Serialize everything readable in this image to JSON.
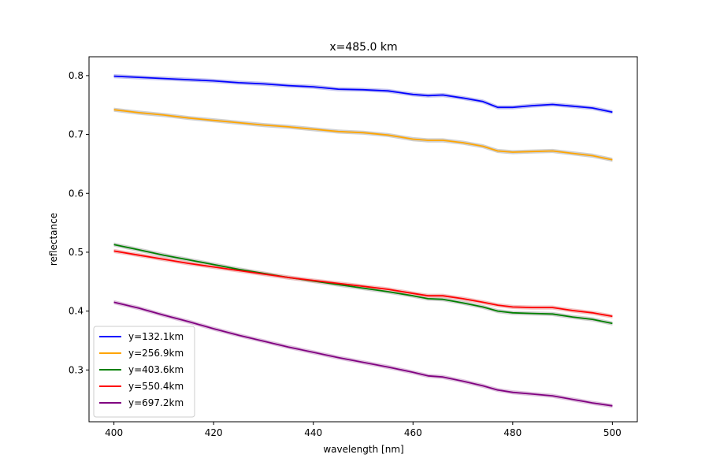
{
  "chart_data": {
    "type": "line",
    "title": "x=485.0 km",
    "xlabel": "wavelength [nm]",
    "ylabel": "reflectance",
    "xlim": [
      395,
      505
    ],
    "ylim": [
      0.212,
      0.832
    ],
    "xticks": [
      400,
      420,
      440,
      460,
      480,
      500
    ],
    "xtick_labels": [
      "400",
      "420",
      "440",
      "460",
      "480",
      "500"
    ],
    "yticks": [
      0.3,
      0.4,
      0.5,
      0.6,
      0.7,
      0.8
    ],
    "ytick_labels": [
      "0.3",
      "0.4",
      "0.5",
      "0.6",
      "0.7",
      "0.8"
    ],
    "grid": false,
    "legend": "lower-left",
    "x": [
      400,
      405,
      410,
      415,
      420,
      425,
      430,
      435,
      440,
      445,
      450,
      455,
      460,
      463,
      466,
      470,
      474,
      477,
      480,
      484,
      488,
      492,
      496,
      500
    ],
    "series": [
      {
        "name": "y=132.1km",
        "color": "#0000ff",
        "band_color": "#b8b8ee",
        "values": [
          0.799,
          0.797,
          0.795,
          0.793,
          0.791,
          0.788,
          0.786,
          0.783,
          0.781,
          0.777,
          0.776,
          0.774,
          0.768,
          0.766,
          0.767,
          0.762,
          0.756,
          0.746,
          0.746,
          0.749,
          0.751,
          0.748,
          0.745,
          0.738
        ]
      },
      {
        "name": "y=256.9km",
        "color": "#ffa500",
        "band_color": "#c8c8c8",
        "values": [
          0.742,
          0.737,
          0.733,
          0.728,
          0.724,
          0.72,
          0.716,
          0.713,
          0.709,
          0.705,
          0.703,
          0.699,
          0.692,
          0.69,
          0.69,
          0.686,
          0.68,
          0.672,
          0.67,
          0.671,
          0.672,
          0.668,
          0.664,
          0.657
        ]
      },
      {
        "name": "y=403.6km",
        "color": "#008000",
        "band_color": "#c8c8c8",
        "values": [
          0.513,
          0.504,
          0.495,
          0.487,
          0.479,
          0.471,
          0.464,
          0.457,
          0.451,
          0.445,
          0.439,
          0.433,
          0.426,
          0.421,
          0.42,
          0.414,
          0.407,
          0.4,
          0.397,
          0.396,
          0.395,
          0.39,
          0.386,
          0.379
        ]
      },
      {
        "name": "y=550.4km",
        "color": "#ff0000",
        "band_color": "#f0b8b8",
        "values": [
          0.502,
          0.495,
          0.488,
          0.481,
          0.475,
          0.469,
          0.463,
          0.457,
          0.452,
          0.447,
          0.442,
          0.437,
          0.43,
          0.426,
          0.426,
          0.421,
          0.415,
          0.41,
          0.407,
          0.406,
          0.406,
          0.401,
          0.397,
          0.391
        ]
      },
      {
        "name": "y=697.2km",
        "color": "#800080",
        "band_color": "#d8b8d8",
        "values": [
          0.415,
          0.405,
          0.393,
          0.382,
          0.37,
          0.359,
          0.349,
          0.339,
          0.33,
          0.321,
          0.313,
          0.305,
          0.296,
          0.29,
          0.288,
          0.281,
          0.273,
          0.266,
          0.262,
          0.259,
          0.256,
          0.25,
          0.244,
          0.239
        ]
      }
    ]
  }
}
